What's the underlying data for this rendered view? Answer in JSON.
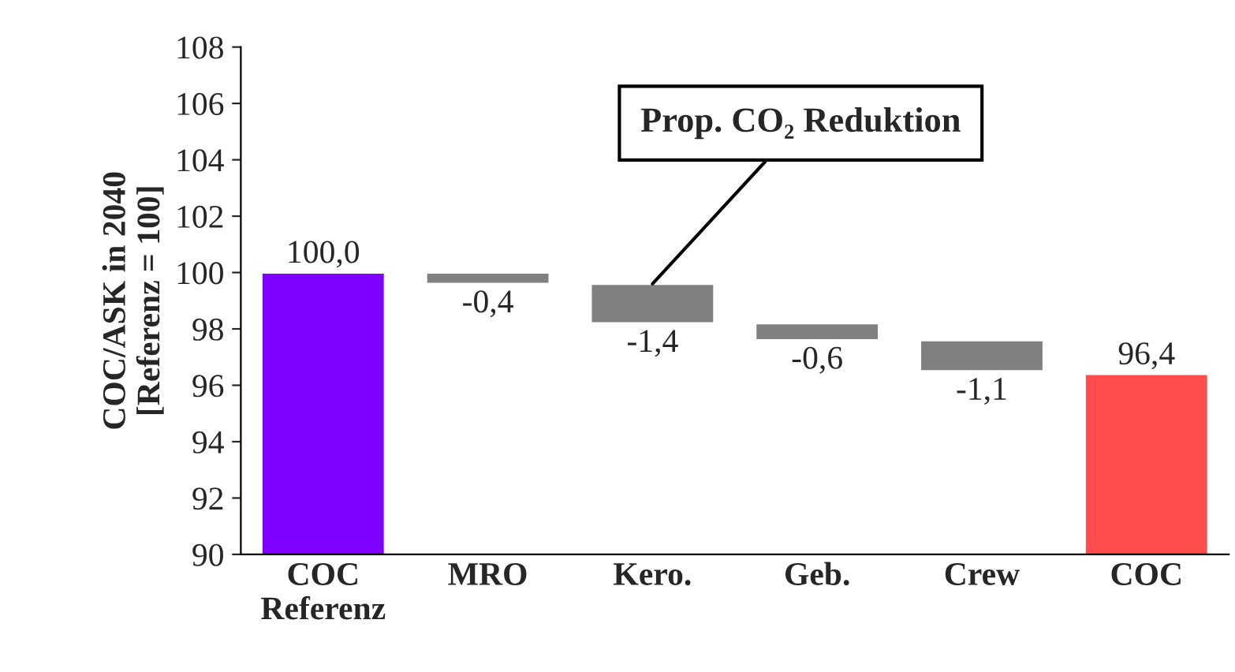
{
  "chart_data": {
    "type": "bar",
    "ylabel": "COC/ASK in 2040\n[Referenz = 100]",
    "categories": [
      "COC\nReferenz",
      "MRO",
      "Kero.",
      "Geb.",
      "Crew",
      "COC"
    ],
    "values": [
      100.0,
      -0.4,
      -1.4,
      -0.6,
      -1.1,
      96.4
    ],
    "base": [
      0,
      100.0,
      99.6,
      98.2,
      97.6,
      0
    ],
    "value_labels": [
      "100,0",
      "-0,4",
      "-1,4",
      "-0,6",
      "-1,1",
      "96,4"
    ],
    "colors": [
      "#7f00ff",
      "#808080",
      "#808080",
      "#808080",
      "#808080",
      "#ff4d4d"
    ],
    "ylim": [
      90,
      108
    ],
    "yticks": [
      90,
      92,
      94,
      96,
      98,
      100,
      102,
      104,
      106,
      108
    ],
    "annotations": [
      {
        "text": "Prop. CO₂ Reduktion",
        "x": "Kero.",
        "y": 99.6
      }
    ],
    "grid": false,
    "legend": false
  }
}
